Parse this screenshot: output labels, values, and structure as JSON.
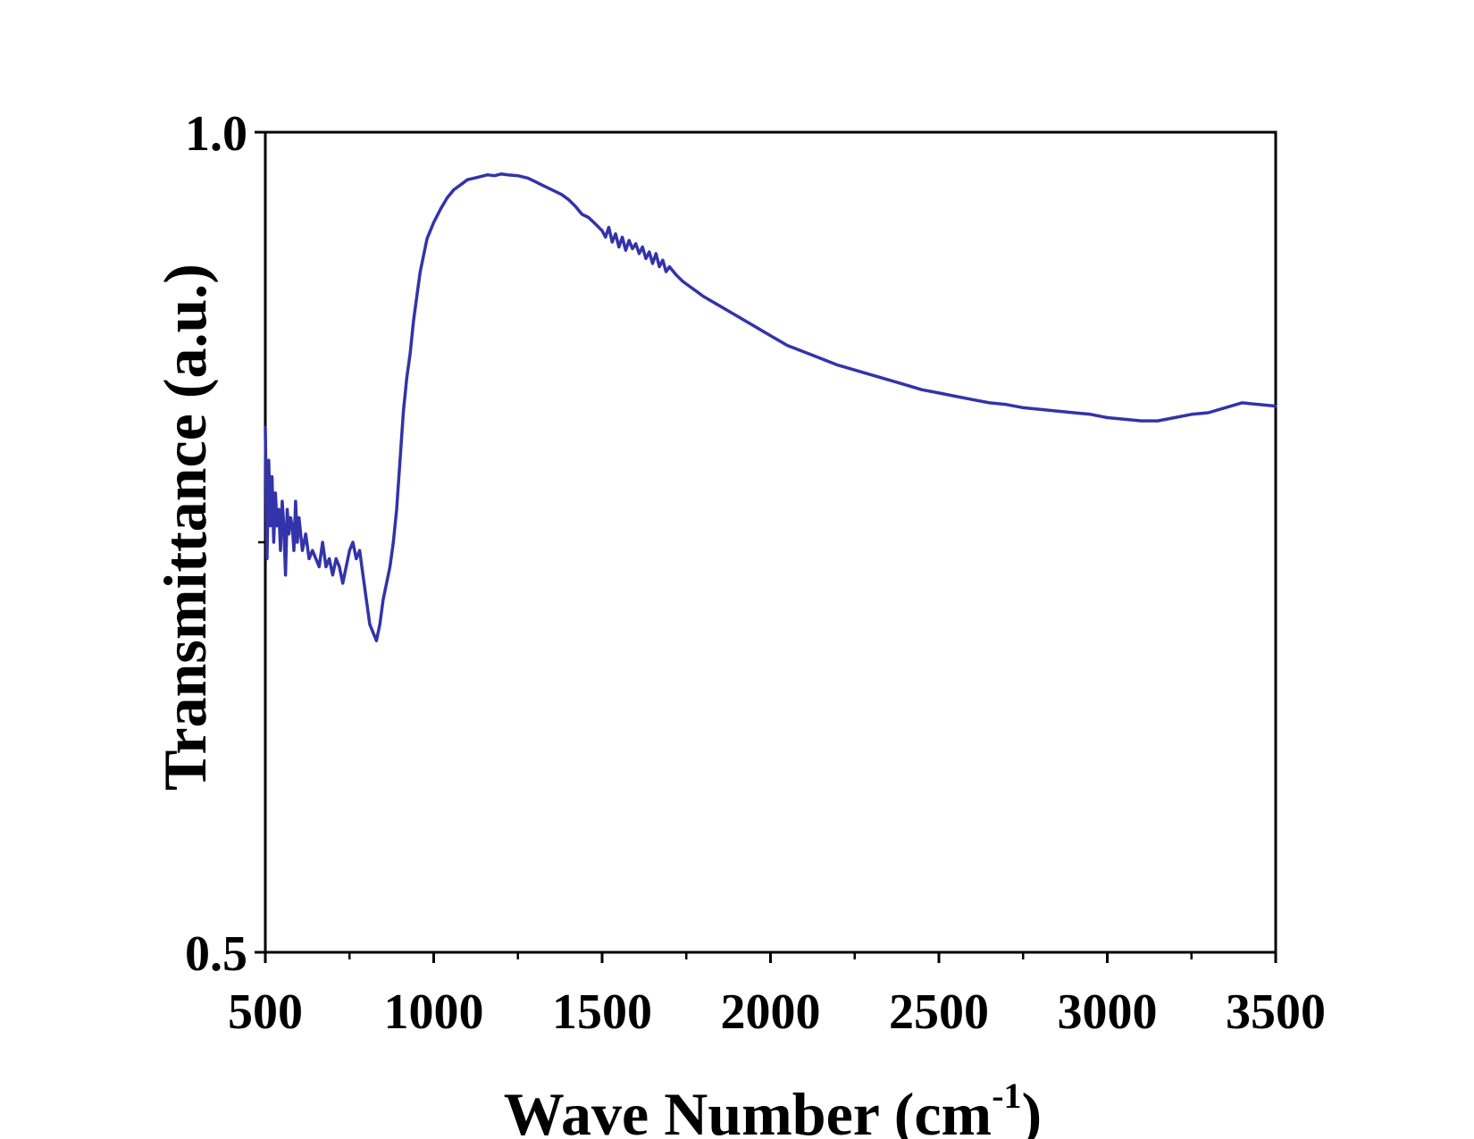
{
  "chart_data": {
    "type": "line",
    "title": "",
    "xlabel": "Wave Number (cm",
    "xlabel_sup": "-1",
    "xlabel_close": ")",
    "ylabel": "Transmittance (a.u.)",
    "xlim": [
      500,
      3500
    ],
    "ylim": [
      0.5,
      1.0
    ],
    "x_ticks": [
      500,
      1000,
      1500,
      2000,
      2500,
      3000,
      3500
    ],
    "x_tick_labels": [
      "500",
      "1000",
      "1500",
      "2000",
      "2500",
      "3000",
      "3500"
    ],
    "y_ticks": [
      0.5,
      1.0
    ],
    "y_tick_labels": [
      "0.5",
      "1.0"
    ],
    "y_minor_ticks": [
      0.75
    ],
    "x_minor_step": 250,
    "grid": false,
    "legend": "none",
    "series": [
      {
        "color": "#3333aa",
        "x": [
          500,
          505,
          510,
          515,
          520,
          525,
          530,
          535,
          540,
          545,
          550,
          555,
          560,
          565,
          570,
          575,
          580,
          585,
          590,
          595,
          600,
          610,
          620,
          630,
          640,
          650,
          660,
          670,
          680,
          690,
          700,
          710,
          720,
          730,
          740,
          750,
          760,
          770,
          780,
          790,
          800,
          810,
          820,
          830,
          840,
          850,
          860,
          870,
          880,
          890,
          900,
          910,
          920,
          930,
          940,
          950,
          960,
          970,
          980,
          990,
          1000,
          1020,
          1040,
          1060,
          1080,
          1100,
          1120,
          1140,
          1160,
          1180,
          1200,
          1220,
          1250,
          1280,
          1300,
          1320,
          1350,
          1380,
          1400,
          1420,
          1440,
          1460,
          1480,
          1500,
          1510,
          1520,
          1530,
          1540,
          1550,
          1560,
          1570,
          1580,
          1590,
          1600,
          1610,
          1620,
          1630,
          1640,
          1650,
          1660,
          1670,
          1680,
          1690,
          1700,
          1720,
          1740,
          1760,
          1780,
          1800,
          1850,
          1900,
          1950,
          2000,
          2050,
          2100,
          2150,
          2200,
          2250,
          2300,
          2350,
          2400,
          2450,
          2500,
          2550,
          2600,
          2650,
          2700,
          2750,
          2800,
          2850,
          2900,
          2950,
          3000,
          3050,
          3100,
          3150,
          3200,
          3250,
          3300,
          3350,
          3400,
          3450,
          3500
        ],
        "y": [
          0.82,
          0.74,
          0.8,
          0.76,
          0.79,
          0.75,
          0.78,
          0.76,
          0.77,
          0.745,
          0.775,
          0.76,
          0.73,
          0.77,
          0.755,
          0.765,
          0.76,
          0.745,
          0.775,
          0.75,
          0.765,
          0.745,
          0.755,
          0.74,
          0.745,
          0.74,
          0.735,
          0.75,
          0.735,
          0.74,
          0.73,
          0.74,
          0.735,
          0.725,
          0.735,
          0.745,
          0.75,
          0.74,
          0.745,
          0.73,
          0.715,
          0.7,
          0.695,
          0.69,
          0.7,
          0.715,
          0.725,
          0.735,
          0.75,
          0.77,
          0.8,
          0.83,
          0.85,
          0.865,
          0.885,
          0.9,
          0.915,
          0.925,
          0.935,
          0.94,
          0.945,
          0.953,
          0.96,
          0.965,
          0.968,
          0.971,
          0.972,
          0.973,
          0.974,
          0.9735,
          0.9745,
          0.974,
          0.9735,
          0.972,
          0.97,
          0.968,
          0.965,
          0.962,
          0.959,
          0.955,
          0.95,
          0.948,
          0.944,
          0.94,
          0.936,
          0.942,
          0.933,
          0.938,
          0.93,
          0.936,
          0.928,
          0.934,
          0.929,
          0.932,
          0.926,
          0.93,
          0.923,
          0.927,
          0.92,
          0.926,
          0.918,
          0.922,
          0.915,
          0.918,
          0.913,
          0.909,
          0.906,
          0.903,
          0.9,
          0.894,
          0.888,
          0.882,
          0.876,
          0.87,
          0.866,
          0.862,
          0.858,
          0.855,
          0.852,
          0.849,
          0.846,
          0.843,
          0.841,
          0.839,
          0.837,
          0.835,
          0.834,
          0.832,
          0.831,
          0.83,
          0.829,
          0.828,
          0.826,
          0.825,
          0.824,
          0.824,
          0.826,
          0.828,
          0.829,
          0.832,
          0.835,
          0.834,
          0.833
        ]
      }
    ]
  }
}
